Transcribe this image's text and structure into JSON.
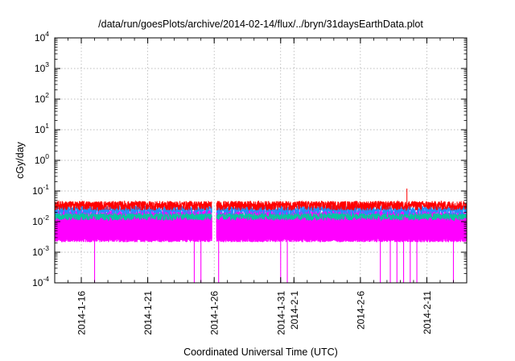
{
  "chart_data": {
    "type": "line",
    "title": "/data/run/goesPlots/archive/2014-02-14/flux/../bryn/31daysEarthData.plot",
    "xlabel": "Coordinated Universal Time (UTC)",
    "ylabel": "cGy/day",
    "yscale": "log",
    "ylim": [
      0.0001,
      10000
    ],
    "xlim": [
      "2014-01-14",
      "2014-02-14"
    ],
    "grid": true,
    "y_ticks": [
      {
        "value": 0.0001,
        "base": "10",
        "exp": "-4"
      },
      {
        "value": 0.001,
        "base": "10",
        "exp": "-3"
      },
      {
        "value": 0.01,
        "base": "10",
        "exp": "-2"
      },
      {
        "value": 0.1,
        "base": "10",
        "exp": "-1"
      },
      {
        "value": 1,
        "base": "10",
        "exp": "0"
      },
      {
        "value": 10,
        "base": "10",
        "exp": "1"
      },
      {
        "value": 100,
        "base": "10",
        "exp": "2"
      },
      {
        "value": 1000,
        "base": "10",
        "exp": "3"
      },
      {
        "value": 10000,
        "base": "10",
        "exp": "4"
      }
    ],
    "x_ticks": [
      {
        "date": "2014-01-16",
        "label": "2014-1-16"
      },
      {
        "date": "2014-01-21",
        "label": "2014-1-21"
      },
      {
        "date": "2014-01-26",
        "label": "2014-1-26"
      },
      {
        "date": "2014-01-31",
        "label": "2014-1-31"
      },
      {
        "date": "2014-02-01",
        "label": "2014-2-1"
      },
      {
        "date": "2014-02-06",
        "label": "2014-2-6"
      },
      {
        "date": "2014-02-11",
        "label": "2014-2-11"
      }
    ],
    "series": [
      {
        "color": "#ff0000",
        "level": 0.035,
        "spread": 0.012,
        "peaks": [
          {
            "date": "2014-02-09T12:00",
            "value": 0.12
          }
        ]
      },
      {
        "color": "#1e90ff",
        "level": 0.025,
        "spread": 0.008
      },
      {
        "color": "#00c8a0",
        "level": 0.015,
        "spread": 0.004
      },
      {
        "color": "#ff00ff",
        "level_low": 0.0025,
        "level_high": 0.018,
        "dropouts": [
          "2014-01-17T00:00",
          "2014-01-24T12:00",
          "2014-01-25T00:00",
          "2014-01-26T08:00",
          "2014-01-31T00:00",
          "2014-01-31T12:00",
          "2014-02-07T12:00",
          "2014-02-08T06:00",
          "2014-02-08T18:00",
          "2014-02-09T06:00",
          "2014-02-09T18:00",
          "2014-02-10T06:00",
          "2014-02-13T00:00"
        ]
      }
    ],
    "data_gaps": [
      {
        "start": "2014-01-25T20:00",
        "end": "2014-01-26T04:00"
      }
    ]
  }
}
